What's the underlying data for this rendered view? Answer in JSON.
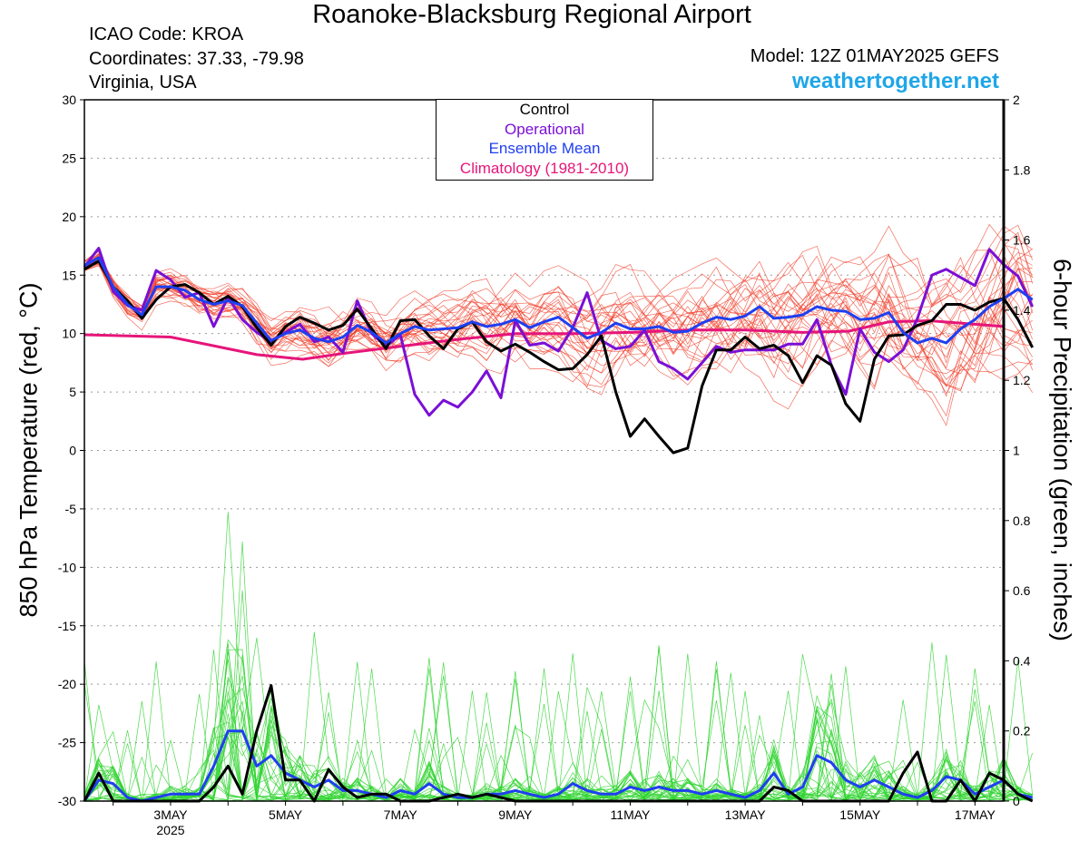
{
  "header": {
    "title": "Roanoke-Blacksburg Regional Airport",
    "icao": "ICAO Code: KROA",
    "coords": "Coordinates: 37.33, -79.98",
    "region": "Virginia, USA",
    "model": "Model: 12Z 01MAY2025 GEFS",
    "site": "weathertogether.net"
  },
  "legend": {
    "control": "Control",
    "operational": "Operational",
    "mean": "Ensemble Mean",
    "clim": "Climatology (1981-2010)"
  },
  "colors": {
    "control": "#000000",
    "operational": "#7a0fd6",
    "mean": "#1f3ff0",
    "clim": "#e6157a",
    "temp_members": "#f03c28",
    "precip_members": "#2ed42e"
  },
  "chart_data": {
    "type": "line",
    "xlabel": "",
    "ylabel_left": "850 hPa Temperature (red, °C)",
    "ylabel_right": "6-hour Precipitation (green, inches)",
    "ylim_left": [
      -30,
      30
    ],
    "ylim_right": [
      0,
      2
    ],
    "yticks_left": [
      30,
      25,
      20,
      15,
      10,
      5,
      0,
      -5,
      -10,
      -15,
      -20,
      -25,
      -30
    ],
    "yticks_right": [
      "2",
      "1.8",
      "1.6",
      "1.4",
      "1.2",
      "1",
      "0.8",
      "0.6",
      "0.4",
      "0.2",
      "0"
    ],
    "x_ticks": [
      {
        "label": "3MAY",
        "day": 3
      },
      {
        "label": "5MAY",
        "day": 5
      },
      {
        "label": "7MAY",
        "day": 7
      },
      {
        "label": "9MAY",
        "day": 9
      },
      {
        "label": "11MAY",
        "day": 11
      },
      {
        "label": "13MAY",
        "day": 13
      },
      {
        "label": "15MAY",
        "day": 15
      },
      {
        "label": "17MAY",
        "day": 17
      }
    ],
    "year_label": "2025",
    "x_domain_days": [
      1.5,
      17.5
    ],
    "grid": true,
    "temperature": {
      "step_days": 0.25,
      "control": [
        15.5,
        16.2,
        14,
        12.8,
        11.3,
        12.9,
        14,
        14.2,
        13.5,
        12.5,
        13.2,
        12.3,
        10.5,
        9,
        10.6,
        11.4,
        10.9,
        10.3,
        10.7,
        12.1,
        10.4,
        8.7,
        11.1,
        11.2,
        9.8,
        8.7,
        10.4,
        11,
        9.3,
        8.5,
        9.1,
        8.4,
        7.6,
        6.9,
        7,
        8.2,
        9.8,
        5,
        1.2,
        2.7,
        1.2,
        -0.2,
        0.2,
        5.5,
        8.6,
        8.6,
        9.7,
        8.7,
        9,
        8.1,
        5.8,
        8.1,
        7.3,
        4,
        2.5,
        7.8,
        9.8,
        9.9,
        10.7,
        11.1,
        12.5,
        12.5,
        12,
        12.7,
        13,
        11.2,
        8.8
      ],
      "operational": [
        15.7,
        17.3,
        13.6,
        12.4,
        12,
        15.4,
        14.6,
        13.1,
        13.5,
        10.6,
        13.1,
        11.2,
        10.1,
        9.3,
        10.1,
        10.8,
        9.3,
        9.7,
        8.4,
        12.8,
        10,
        8.9,
        9.9,
        4.8,
        3,
        4.3,
        3.7,
        5,
        6.8,
        4.5,
        11.1,
        9,
        9.2,
        8.5,
        10.5,
        13.5,
        9.4,
        8.7,
        8.9,
        10.3,
        7.6,
        7,
        6.1,
        7.5,
        8.9,
        8.4,
        8.6,
        8.6,
        8.6,
        9.1,
        9.1,
        11.2,
        7.3,
        4.8,
        10.4,
        8.4,
        7.6,
        8.6,
        11.3,
        15,
        15.5,
        14.8,
        14.1,
        17.2,
        15.9,
        14.9,
        12.3
      ],
      "mean": [
        15.8,
        16.5,
        14,
        12.5,
        11.6,
        14,
        14,
        13.7,
        12.9,
        12.5,
        12.8,
        12.4,
        10.9,
        9.4,
        10,
        10.3,
        9.6,
        9.3,
        9.7,
        10.7,
        10.1,
        9.2,
        10,
        10.6,
        10.3,
        10.4,
        10.5,
        11,
        10.6,
        10.8,
        11.2,
        10.5,
        11,
        11.4,
        10.5,
        9.6,
        10.1,
        10.9,
        10.4,
        10.4,
        10.6,
        10.1,
        10.2,
        10.9,
        11.4,
        11.2,
        11.5,
        12.3,
        11.3,
        11.4,
        11.6,
        12.3,
        12,
        11.9,
        11.2,
        11.3,
        11.8,
        10.1,
        9.2,
        9.6,
        9.2,
        10.4,
        11.2,
        12.3,
        13,
        13.8,
        12.9
      ],
      "climatology": [
        [
          1.5,
          9.9
        ],
        [
          3,
          9.7
        ],
        [
          3.7,
          9
        ],
        [
          4.5,
          8.2
        ],
        [
          5.3,
          7.8
        ],
        [
          6,
          8.3
        ],
        [
          7,
          8.9
        ],
        [
          8,
          9.5
        ],
        [
          9,
          10
        ],
        [
          10,
          10
        ],
        [
          11,
          10.1
        ],
        [
          12,
          10.3
        ],
        [
          13,
          10.3
        ],
        [
          14,
          10.1
        ],
        [
          14.8,
          10.2
        ],
        [
          15.5,
          11
        ],
        [
          16.2,
          11.1
        ],
        [
          17,
          10.8
        ],
        [
          17.5,
          10.6
        ]
      ]
    },
    "precipitation": {
      "step_days": 0.25,
      "control": [
        0,
        0.08,
        0,
        0,
        0,
        0,
        0,
        0,
        0,
        0.04,
        0.1,
        0.02,
        0.2,
        0.33,
        0.06,
        0.06,
        0,
        0.09,
        0.04,
        0.01,
        0.02,
        0.02,
        0,
        0,
        0,
        0.01,
        0.02,
        0.01,
        0.02,
        0.01,
        0,
        0,
        0,
        0,
        0,
        0,
        0,
        0,
        0,
        0,
        0,
        0,
        0,
        0,
        0,
        0,
        0,
        0,
        0.04,
        0.03,
        0,
        0,
        0,
        0,
        0,
        0,
        0,
        0.08,
        0.14,
        0,
        0,
        0.06,
        0,
        0.08,
        0.06,
        0.02,
        0
      ],
      "mean": [
        0,
        0.06,
        0.05,
        0.01,
        0,
        0.01,
        0.02,
        0.02,
        0.02,
        0.1,
        0.2,
        0.2,
        0.1,
        0.13,
        0.08,
        0.06,
        0.04,
        0.06,
        0.03,
        0.03,
        0.02,
        0.01,
        0.03,
        0.02,
        0.05,
        0.02,
        0.01,
        0.01,
        0.02,
        0.02,
        0.03,
        0.02,
        0.01,
        0.02,
        0.05,
        0.03,
        0.02,
        0.02,
        0.04,
        0.03,
        0.04,
        0.03,
        0.03,
        0.02,
        0.03,
        0.02,
        0.01,
        0.03,
        0.08,
        0.02,
        0.04,
        0.13,
        0.11,
        0.06,
        0.04,
        0.06,
        0.04,
        0.02,
        0.01,
        0.03,
        0.07,
        0.06,
        0.02,
        0.04,
        0.06,
        0.02,
        0.01
      ]
    }
  }
}
